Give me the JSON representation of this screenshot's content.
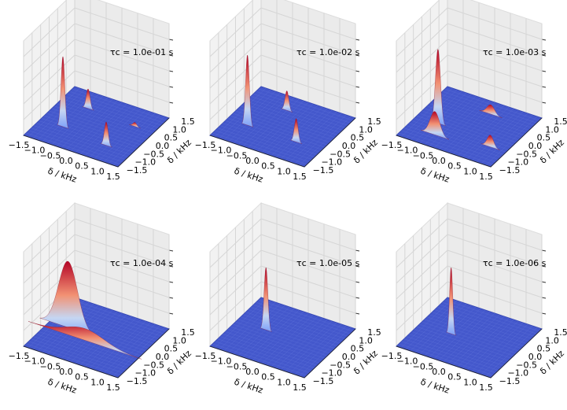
{
  "chart_data": [
    {
      "type": "surface",
      "annotation": "τc = 1.0e-01 s",
      "xlabel": "δ / kHz",
      "ylabel": "δ / kHz",
      "xlim": [
        -1.5,
        1.5
      ],
      "ylim": [
        -1.5,
        1.5
      ],
      "xticks": [
        {
          "value": -1.5,
          "label": "−1.5"
        },
        {
          "value": -1.0,
          "label": "−1.0"
        },
        {
          "value": -0.5,
          "label": "−0.5"
        },
        {
          "value": 0.0,
          "label": "0.0"
        },
        {
          "value": 0.5,
          "label": "0.5"
        },
        {
          "value": 1.0,
          "label": "1.0"
        },
        {
          "value": 1.5,
          "label": "1.5"
        }
      ],
      "yticks": [
        {
          "value": -1.5,
          "label": "−1.5"
        },
        {
          "value": -1.0,
          "label": "−1.0"
        },
        {
          "value": -0.5,
          "label": "−0.5"
        },
        {
          "value": 0.0,
          "label": "0.0"
        },
        {
          "value": 0.5,
          "label": "0.5"
        },
        {
          "value": 1.0,
          "label": "1.0"
        },
        {
          "value": 1.5,
          "label": "1.5"
        }
      ],
      "peaks": [
        {
          "x": -0.77,
          "y": -0.54,
          "z": 0.9,
          "w": 0.06
        },
        {
          "x": -0.64,
          "y": 0.7,
          "z": 0.25,
          "w": 0.06
        },
        {
          "x": 0.7,
          "y": -0.71,
          "z": 0.3,
          "w": 0.06
        },
        {
          "x": 0.9,
          "y": 0.6,
          "z": 0.05,
          "w": 0.06
        }
      ]
    },
    {
      "type": "surface",
      "annotation": "τc = 1.0e-02 s",
      "xlabel": "δ / kHz",
      "ylabel": "δ / kHz",
      "xlim": [
        -1.5,
        1.5
      ],
      "ylim": [
        -1.5,
        1.5
      ],
      "xticks": [
        {
          "value": -1.5,
          "label": "−1.5"
        },
        {
          "value": -1.0,
          "label": "−1.0"
        },
        {
          "value": -0.5,
          "label": "−0.5"
        },
        {
          "value": 0.0,
          "label": "0.0"
        },
        {
          "value": 0.5,
          "label": "0.5"
        },
        {
          "value": 1.0,
          "label": "1.0"
        },
        {
          "value": 1.5,
          "label": "1.5"
        }
      ],
      "yticks": [
        {
          "value": -1.5,
          "label": "−1.5"
        },
        {
          "value": -1.0,
          "label": "−1.0"
        },
        {
          "value": -0.5,
          "label": "−0.5"
        },
        {
          "value": 0.0,
          "label": "0.0"
        },
        {
          "value": 0.5,
          "label": "0.5"
        },
        {
          "value": 1.0,
          "label": "1.0"
        },
        {
          "value": 1.5,
          "label": "1.5"
        }
      ],
      "peaks": [
        {
          "x": -0.85,
          "y": -0.5,
          "z": 0.9,
          "w": 0.06
        },
        {
          "x": -0.3,
          "y": 0.8,
          "z": 0.25,
          "w": 0.06
        },
        {
          "x": 0.7,
          "y": -0.5,
          "z": 0.3,
          "w": 0.06
        }
      ]
    },
    {
      "type": "surface",
      "annotation": "τc = 1.0e-03 s",
      "xlabel": "δ / kHz",
      "ylabel": "δ / kHz",
      "xlim": [
        -1.5,
        1.5
      ],
      "ylim": [
        -1.5,
        1.5
      ],
      "xticks": [
        {
          "value": -1.5,
          "label": "−1.5"
        },
        {
          "value": -1.0,
          "label": "−1.0"
        },
        {
          "value": -0.5,
          "label": "−0.5"
        },
        {
          "value": 0.0,
          "label": "0.0"
        },
        {
          "value": 0.5,
          "label": "0.5"
        },
        {
          "value": 1.0,
          "label": "1.0"
        },
        {
          "value": 1.5,
          "label": "1.5"
        }
      ],
      "yticks": [
        {
          "value": -1.5,
          "label": "−1.5"
        },
        {
          "value": -1.0,
          "label": "−1.0"
        },
        {
          "value": -0.5,
          "label": "−0.5"
        },
        {
          "value": 0.0,
          "label": "0.0"
        },
        {
          "value": 0.5,
          "label": "0.5"
        },
        {
          "value": 1.0,
          "label": "1.0"
        },
        {
          "value": 1.5,
          "label": "1.5"
        }
      ],
      "peaks": [
        {
          "x": -0.8,
          "y": -0.35,
          "z": 0.95,
          "w": 0.08
        },
        {
          "x": -0.6,
          "y": -0.9,
          "z": 0.3,
          "w": 0.15
        },
        {
          "x": 0.2,
          "y": 0.9,
          "z": 0.12,
          "w": 0.12
        },
        {
          "x": 1.0,
          "y": -0.6,
          "z": 0.15,
          "w": 0.1
        }
      ]
    },
    {
      "type": "surface",
      "annotation": "τc = 1.0e-04 s",
      "xlabel": "δ / kHz",
      "ylabel": "δ / kHz",
      "xlim": [
        -1.5,
        1.5
      ],
      "ylim": [
        -1.5,
        1.5
      ],
      "xticks": [
        {
          "value": -1.5,
          "label": "−1.5"
        },
        {
          "value": -1.0,
          "label": "−1.0"
        },
        {
          "value": -0.5,
          "label": "−0.5"
        },
        {
          "value": 0.0,
          "label": "0.0"
        },
        {
          "value": 0.5,
          "label": "0.5"
        },
        {
          "value": 1.0,
          "label": "1.0"
        },
        {
          "value": 1.5,
          "label": "1.5"
        }
      ],
      "yticks": [
        {
          "value": -1.5,
          "label": "−1.5"
        },
        {
          "value": -1.0,
          "label": "−1.0"
        },
        {
          "value": -0.5,
          "label": "−0.5"
        },
        {
          "value": 0.0,
          "label": "0.0"
        },
        {
          "value": 0.5,
          "label": "0.5"
        },
        {
          "value": 1.0,
          "label": "1.0"
        },
        {
          "value": 1.5,
          "label": "1.5"
        }
      ],
      "peaks": [
        {
          "x": -0.2,
          "y": -0.3,
          "z": 0.15,
          "w": 0.6
        },
        {
          "x": -0.9,
          "y": 0.0,
          "z": 0.85,
          "w": 0.3
        }
      ]
    },
    {
      "type": "surface",
      "annotation": "τc = 1.0e-05 s",
      "xlabel": "δ / kHz",
      "ylabel": "δ / kHz",
      "xlim": [
        -1.5,
        1.5
      ],
      "ylim": [
        -1.5,
        1.5
      ],
      "xticks": [
        {
          "value": -1.5,
          "label": "−1.5"
        },
        {
          "value": -1.0,
          "label": "−1.0"
        },
        {
          "value": -0.5,
          "label": "−0.5"
        },
        {
          "value": 0.0,
          "label": "0.0"
        },
        {
          "value": 0.5,
          "label": "0.5"
        },
        {
          "value": 1.0,
          "label": "1.0"
        },
        {
          "value": 1.5,
          "label": "1.5"
        }
      ],
      "yticks": [
        {
          "value": -1.5,
          "label": "−1.5"
        },
        {
          "value": -1.0,
          "label": "−1.0"
        },
        {
          "value": -0.5,
          "label": "−0.5"
        },
        {
          "value": 0.0,
          "label": "0.0"
        },
        {
          "value": 0.5,
          "label": "0.5"
        },
        {
          "value": 1.0,
          "label": "1.0"
        },
        {
          "value": 1.5,
          "label": "1.5"
        }
      ],
      "peaks": [
        {
          "x": -0.57,
          "y": 0.07,
          "z": 0.8,
          "w": 0.06
        }
      ]
    },
    {
      "type": "surface",
      "annotation": "τc = 1.0e-06 s",
      "xlabel": "δ / kHz",
      "ylabel": "δ / kHz",
      "xlim": [
        -1.5,
        1.5
      ],
      "ylim": [
        -1.5,
        1.5
      ],
      "xticks": [
        {
          "value": -1.5,
          "label": "−1.5"
        },
        {
          "value": -1.0,
          "label": "−1.0"
        },
        {
          "value": -0.5,
          "label": "−0.5"
        },
        {
          "value": 0.0,
          "label": "0.0"
        },
        {
          "value": 0.5,
          "label": "0.5"
        },
        {
          "value": 1.0,
          "label": "1.0"
        },
        {
          "value": 1.5,
          "label": "1.5"
        }
      ],
      "yticks": [
        {
          "value": -1.5,
          "label": "−1.5"
        },
        {
          "value": -1.0,
          "label": "−1.0"
        },
        {
          "value": -0.5,
          "label": "−0.5"
        },
        {
          "value": 0.0,
          "label": "0.0"
        },
        {
          "value": 0.5,
          "label": "0.5"
        },
        {
          "value": 1.0,
          "label": "1.0"
        },
        {
          "value": 1.5,
          "label": "1.5"
        }
      ],
      "peaks": [
        {
          "x": -0.5,
          "y": -0.13,
          "z": 0.85,
          "w": 0.05
        }
      ]
    }
  ]
}
